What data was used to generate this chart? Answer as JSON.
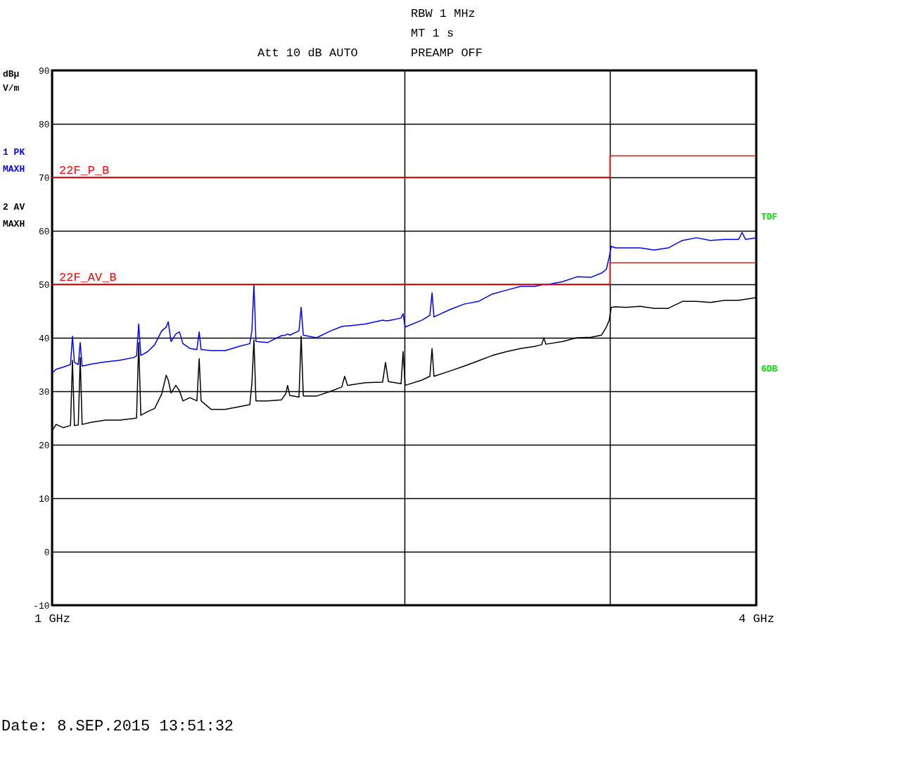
{
  "chart_data": {
    "type": "line",
    "ylabel": "dBµV/m",
    "annotations": [
      "RBW 1 MHz",
      "MT 1 s",
      "Att 10 dB AUTO",
      "PREAMP OFF",
      "Date: 8.SEP.2015 13:51:32",
      "TDF",
      "6DB"
    ],
    "xlim": [
      1,
      4
    ],
    "xticks": [
      {
        "value": 1,
        "label": "1 GHz"
      },
      {
        "value": 2,
        "label": null
      },
      {
        "value": 3,
        "label": null
      },
      {
        "value": 4,
        "label": "4 GHz"
      }
    ],
    "ylim": [
      -10,
      90
    ],
    "yticks": [
      -10,
      0,
      10,
      20,
      30,
      40,
      50,
      60,
      70,
      80,
      90
    ],
    "log": "x",
    "grid": true,
    "legend": "left",
    "series": [
      {
        "type": "line",
        "name": "1 PK MAXH",
        "color": "#0000ff",
        "x": [
          1.0,
          1.008,
          1.022,
          1.037,
          1.041,
          1.045,
          1.053,
          1.057,
          1.061,
          1.081,
          1.111,
          1.142,
          1.174,
          1.181,
          1.186,
          1.191,
          1.207,
          1.224,
          1.241,
          1.252,
          1.257,
          1.264,
          1.276,
          1.285,
          1.294,
          1.312,
          1.33,
          1.336,
          1.341,
          1.368,
          1.406,
          1.445,
          1.476,
          1.482,
          1.488,
          1.494,
          1.528,
          1.571,
          1.584,
          1.59,
          1.597,
          1.626,
          1.633,
          1.64,
          1.683,
          1.731,
          1.769,
          1.779,
          1.789,
          1.855,
          1.917,
          1.928,
          1.939,
          1.988,
          1.996,
          2.004,
          2.072,
          2.104,
          2.113,
          2.121,
          2.19,
          2.251,
          2.315,
          2.38,
          2.446,
          2.515,
          2.586,
          2.622,
          2.633,
          2.644,
          2.733,
          2.81,
          2.889,
          2.95,
          2.978,
          2.995,
          3.007,
          3.032,
          3.096,
          3.183,
          3.272,
          3.364,
          3.459,
          3.556,
          3.656,
          3.758,
          3.864,
          3.89,
          3.917,
          4.0
        ],
        "values": [
          33.4,
          34.1,
          34.5,
          35.0,
          40.3,
          35.4,
          35.0,
          39.1,
          34.7,
          35.1,
          35.5,
          35.8,
          36.3,
          36.6,
          42.6,
          36.7,
          37.4,
          38.7,
          41.3,
          42.0,
          43.0,
          39.3,
          40.7,
          41.1,
          38.9,
          38.0,
          37.8,
          41.1,
          37.8,
          37.6,
          37.6,
          38.4,
          38.9,
          41.3,
          49.9,
          39.3,
          39.1,
          40.4,
          40.5,
          40.7,
          40.5,
          41.3,
          45.7,
          40.5,
          40.0,
          41.3,
          42.1,
          42.2,
          42.2,
          42.6,
          43.3,
          43.2,
          43.2,
          43.7,
          44.5,
          42.0,
          43.3,
          44.2,
          48.4,
          43.9,
          45.3,
          46.3,
          46.8,
          48.2,
          48.9,
          49.6,
          49.6,
          49.9,
          50.0,
          49.9,
          50.5,
          51.4,
          51.3,
          52.1,
          52.8,
          55.1,
          57.1,
          56.8,
          56.8,
          56.8,
          56.4,
          56.8,
          58.2,
          58.7,
          58.2,
          58.4,
          58.4,
          59.7,
          58.4,
          58.7
        ]
      },
      {
        "type": "line",
        "name": "2 AV MAXH",
        "color": "#000000",
        "x": [
          1.0,
          1.008,
          1.022,
          1.037,
          1.041,
          1.045,
          1.053,
          1.057,
          1.061,
          1.081,
          1.111,
          1.142,
          1.174,
          1.181,
          1.186,
          1.191,
          1.207,
          1.224,
          1.241,
          1.252,
          1.257,
          1.264,
          1.276,
          1.285,
          1.294,
          1.312,
          1.33,
          1.336,
          1.341,
          1.368,
          1.406,
          1.445,
          1.476,
          1.482,
          1.488,
          1.494,
          1.528,
          1.571,
          1.584,
          1.59,
          1.597,
          1.626,
          1.633,
          1.64,
          1.683,
          1.731,
          1.769,
          1.779,
          1.789,
          1.855,
          1.917,
          1.928,
          1.939,
          1.988,
          1.996,
          2.004,
          2.072,
          2.104,
          2.113,
          2.121,
          2.19,
          2.251,
          2.315,
          2.38,
          2.446,
          2.515,
          2.586,
          2.622,
          2.633,
          2.644,
          2.733,
          2.81,
          2.889,
          2.95,
          2.978,
          2.995,
          3.007,
          3.032,
          3.096,
          3.183,
          3.272,
          3.364,
          3.459,
          3.556,
          3.656,
          3.758,
          3.864,
          3.89,
          3.917,
          4.0
        ],
        "values": [
          22.6,
          23.8,
          23.2,
          23.6,
          35.8,
          23.6,
          23.7,
          36.3,
          23.8,
          24.2,
          24.6,
          24.6,
          24.9,
          25.0,
          39.1,
          25.5,
          26.2,
          26.8,
          29.5,
          33.0,
          32.1,
          29.7,
          31.1,
          30.1,
          28.2,
          28.8,
          28.2,
          36.1,
          28.2,
          26.6,
          26.6,
          27.1,
          27.5,
          31.4,
          39.6,
          28.2,
          28.2,
          28.4,
          29.5,
          31.1,
          29.2,
          28.9,
          40.3,
          29.1,
          29.1,
          30.0,
          30.8,
          32.8,
          31.1,
          31.6,
          31.7,
          35.4,
          31.8,
          31.4,
          37.4,
          31.1,
          32.1,
          32.8,
          38.0,
          32.8,
          33.8,
          34.7,
          35.7,
          36.7,
          37.4,
          38.0,
          38.4,
          38.7,
          40.0,
          38.8,
          39.3,
          40.0,
          40.1,
          40.5,
          42.0,
          43.3,
          45.7,
          45.8,
          45.7,
          45.9,
          45.5,
          45.5,
          46.8,
          46.8,
          46.6,
          47.0,
          47.0,
          47.1,
          47.2,
          47.5
        ]
      },
      {
        "type": "step",
        "name": "22F_P_B",
        "color": "#ff0000",
        "x": [
          1,
          3,
          4
        ],
        "values": [
          70,
          74,
          74
        ]
      },
      {
        "type": "step",
        "name": "22F_AV_B",
        "color": "#ff0000",
        "x": [
          1,
          3,
          4
        ],
        "values": [
          50,
          54,
          54
        ]
      }
    ]
  }
}
